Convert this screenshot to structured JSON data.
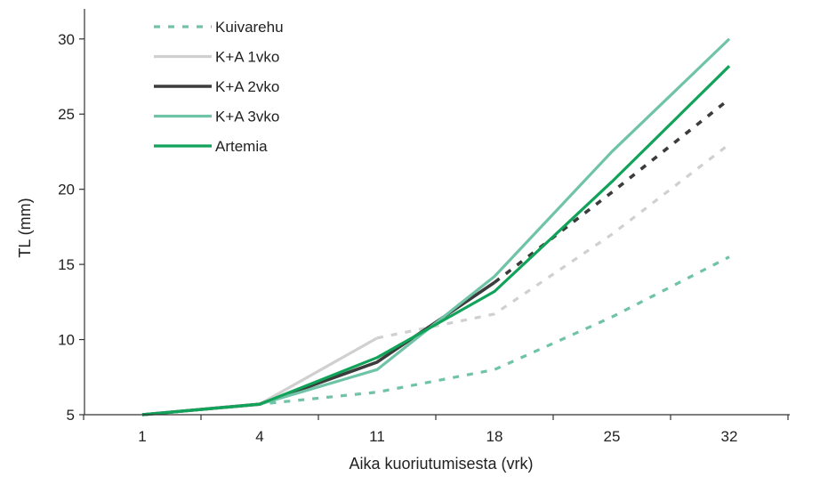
{
  "chart_data": {
    "type": "line",
    "title": "",
    "xlabel": "Aika kuoriutumisesta (vrk)",
    "ylabel": "TL (mm)",
    "categories": [
      "1",
      "4",
      "11",
      "18",
      "25",
      "32"
    ],
    "ylim": [
      5,
      32
    ],
    "yticks": [
      5,
      10,
      15,
      20,
      25,
      30
    ],
    "grid": false,
    "legend_position": "top-left",
    "series": [
      {
        "name": "Kuivarehu",
        "color": "#6fc3a6",
        "style": "dashed",
        "values": [
          5.0,
          5.7,
          6.5,
          8.0,
          11.5,
          15.5
        ]
      },
      {
        "name": "K+A 1vko",
        "color": "#d0d0d0",
        "style": "solid-then-dashed",
        "solid_until": 2,
        "values": [
          5.0,
          5.7,
          10.1,
          11.7,
          17.0,
          23.0
        ]
      },
      {
        "name": "K+A 2vko",
        "color": "#3c3c3c",
        "style": "solid-then-dashed",
        "solid_until": 3,
        "values": [
          5.0,
          5.7,
          8.5,
          13.8,
          19.8,
          26.0
        ]
      },
      {
        "name": "K+A 3vko",
        "color": "#6fc3a6",
        "style": "solid",
        "values": [
          5.0,
          5.7,
          8.0,
          14.2,
          22.5,
          30.0
        ]
      },
      {
        "name": "Artemia",
        "color": "#11a35a",
        "style": "solid",
        "values": [
          5.0,
          5.7,
          8.8,
          13.2,
          20.5,
          28.2
        ]
      }
    ]
  }
}
